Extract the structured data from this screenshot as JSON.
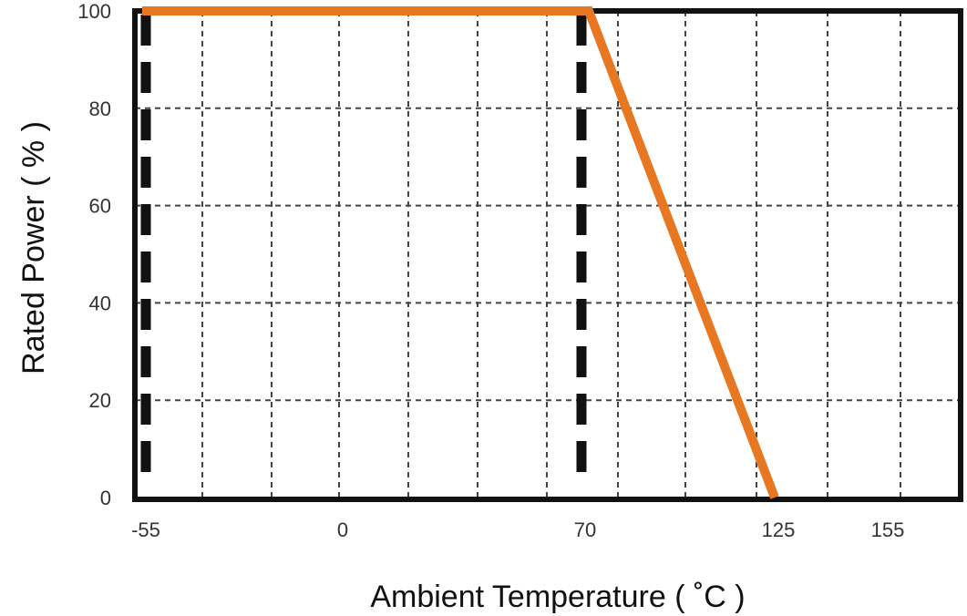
{
  "chart_data": {
    "type": "line",
    "title": "",
    "xlabel": "Ambient Temperature ( ˚C )",
    "ylabel": "Rated Power ( % )",
    "xlim": [
      -55,
      155
    ],
    "ylim": [
      0,
      100
    ],
    "x_ticks": [
      "-55",
      "0",
      "70",
      "125",
      "155"
    ],
    "y_ticks": [
      "0",
      "20",
      "40",
      "60",
      "80",
      "100"
    ],
    "grid": true,
    "series": [
      {
        "x": [
          -55,
          70,
          125
        ],
        "y": [
          100,
          100,
          0
        ],
        "color": "#E87722"
      }
    ],
    "reference_lines": [
      {
        "x": -55,
        "style": "dashed",
        "color": "#111111"
      },
      {
        "x": 70,
        "style": "dashed",
        "color": "#111111"
      }
    ]
  }
}
